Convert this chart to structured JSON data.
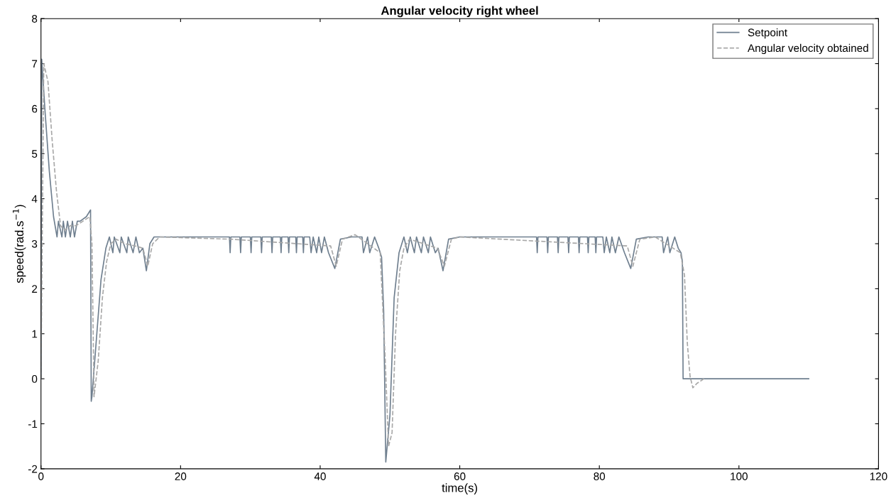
{
  "chart_data": {
    "type": "line",
    "title": "Angular velocity right wheel",
    "xlabel": "time(s)",
    "ylabel": "speed(rad.s$^{−1}$)",
    "xlim": [
      0,
      120
    ],
    "ylim": [
      -2,
      8
    ],
    "xticks": [
      0,
      20,
      40,
      60,
      80,
      100,
      120
    ],
    "yticks": [
      -2,
      -1,
      0,
      1,
      2,
      3,
      4,
      5,
      6,
      7,
      8
    ],
    "grid": false,
    "legend": "top right",
    "series": [
      {
        "name": "Setpoint",
        "color": "#6f7f8f",
        "line_style": "solid",
        "x": [
          0,
          0.1,
          0.6,
          1.2,
          1.8,
          2.3,
          2.5,
          3.0,
          3.2,
          3.5,
          3.8,
          4.2,
          4.5,
          4.8,
          5.2,
          5.6,
          6.5,
          7.1,
          7.2,
          7.3,
          8.0,
          8.6,
          9.3,
          9.8,
          10.3,
          10.5,
          11.3,
          11.5,
          12.3,
          12.5,
          13.2,
          13.6,
          14.1,
          14.6,
          15.1,
          15.6,
          16.2,
          27.0,
          27.1,
          27.2,
          28.5,
          28.6,
          28.7,
          30.0,
          30.1,
          30.2,
          31.5,
          31.6,
          31.7,
          33.0,
          33.1,
          33.2,
          34.3,
          34.4,
          34.5,
          35.4,
          35.5,
          35.6,
          36.5,
          36.6,
          36.7,
          37.5,
          37.6,
          37.7,
          38.5,
          38.7,
          39.0,
          39.5,
          39.8,
          40.2,
          40.6,
          41.2,
          42.1,
          42.9,
          44.5,
          46.0,
          46.2,
          46.8,
          47.1,
          47.8,
          48.4,
          48.8,
          49.1,
          49.4,
          50.0,
          50.6,
          51.3,
          52.0,
          52.5,
          52.9,
          53.5,
          53.8,
          54.5,
          54.8,
          55.5,
          55.8,
          56.5,
          56.9,
          57.6,
          58.4,
          60.0,
          71.0,
          71.1,
          71.2,
          72.5,
          72.6,
          72.7,
          74.0,
          74.1,
          74.2,
          75.5,
          75.6,
          75.7,
          77.0,
          77.1,
          77.2,
          78.3,
          78.4,
          78.5,
          79.4,
          79.5,
          79.6,
          80.5,
          80.7,
          81.0,
          81.5,
          81.8,
          82.3,
          82.8,
          83.6,
          84.5,
          85.3,
          87.0,
          89.0,
          89.2,
          89.8,
          90.1,
          90.8,
          91.3,
          91.7,
          91.9,
          92.0,
          110
        ],
        "values": [
          0,
          7.1,
          5.9,
          4.6,
          3.6,
          3.15,
          3.5,
          3.15,
          3.5,
          3.15,
          3.5,
          3.15,
          3.5,
          3.15,
          3.5,
          3.5,
          3.6,
          3.75,
          -0.5,
          -0.4,
          1.0,
          2.2,
          2.9,
          3.15,
          2.8,
          3.15,
          2.8,
          3.15,
          2.8,
          3.15,
          2.8,
          3.15,
          2.8,
          2.9,
          2.4,
          3.0,
          3.15,
          3.15,
          2.8,
          3.15,
          3.15,
          2.8,
          3.15,
          3.15,
          2.8,
          3.15,
          3.15,
          2.8,
          3.15,
          3.15,
          2.8,
          3.15,
          3.15,
          2.8,
          3.15,
          3.15,
          2.8,
          3.15,
          3.15,
          2.8,
          3.15,
          3.15,
          2.8,
          3.15,
          3.15,
          2.8,
          3.15,
          2.8,
          3.15,
          2.8,
          3.15,
          2.8,
          2.45,
          3.1,
          3.15,
          3.15,
          2.8,
          3.15,
          2.8,
          3.15,
          2.9,
          2.7,
          1.5,
          -1.85,
          -0.8,
          1.8,
          2.8,
          3.15,
          2.8,
          3.15,
          2.8,
          3.15,
          2.8,
          3.15,
          2.8,
          3.15,
          2.8,
          2.9,
          2.4,
          3.1,
          3.15,
          3.15,
          2.8,
          3.15,
          3.15,
          2.8,
          3.15,
          3.15,
          2.8,
          3.15,
          3.15,
          2.8,
          3.15,
          3.15,
          2.8,
          3.15,
          3.15,
          2.8,
          3.15,
          3.15,
          2.8,
          3.15,
          3.15,
          2.8,
          3.15,
          2.8,
          3.15,
          2.8,
          3.15,
          2.8,
          2.45,
          3.1,
          3.15,
          3.15,
          2.8,
          3.15,
          2.8,
          3.15,
          2.9,
          2.8,
          2.6,
          0,
          0
        ]
      },
      {
        "name": "Angular velocity obtained",
        "color": "#a8a8a8",
        "line_style": "dashed",
        "x": [
          0,
          0.4,
          1.0,
          1.6,
          2.2,
          2.8,
          3.4,
          4.2,
          5.0,
          6.0,
          7.0,
          7.3,
          7.6,
          8.2,
          8.8,
          9.4,
          10.0,
          10.8,
          12.0,
          13.5,
          14.6,
          15.3,
          16.0,
          17.0,
          27.2,
          41.5,
          42.3,
          43.2,
          45.0,
          48.6,
          49.3,
          49.8,
          50.3,
          50.8,
          51.4,
          52.0,
          52.8,
          56.8,
          57.8,
          58.8,
          60.0,
          84.0,
          84.8,
          85.8,
          88.0,
          91.6,
          92.2,
          92.6,
          93.0,
          93.4,
          94.0,
          95.0
        ],
        "values": [
          0,
          7.0,
          6.6,
          5.3,
          4.2,
          3.4,
          3.3,
          3.4,
          3.4,
          3.5,
          3.6,
          3.0,
          -0.4,
          0.4,
          1.8,
          2.6,
          3.0,
          3.1,
          3.0,
          2.95,
          2.9,
          2.5,
          3.0,
          3.15,
          3.1,
          2.95,
          2.5,
          3.1,
          3.2,
          2.8,
          0.5,
          -1.5,
          -1.2,
          1.0,
          2.4,
          2.9,
          3.1,
          2.9,
          2.5,
          3.1,
          3.15,
          2.95,
          2.5,
          3.1,
          3.15,
          2.8,
          2.3,
          0.8,
          0.05,
          -0.2,
          -0.1,
          0.0
        ]
      }
    ]
  }
}
